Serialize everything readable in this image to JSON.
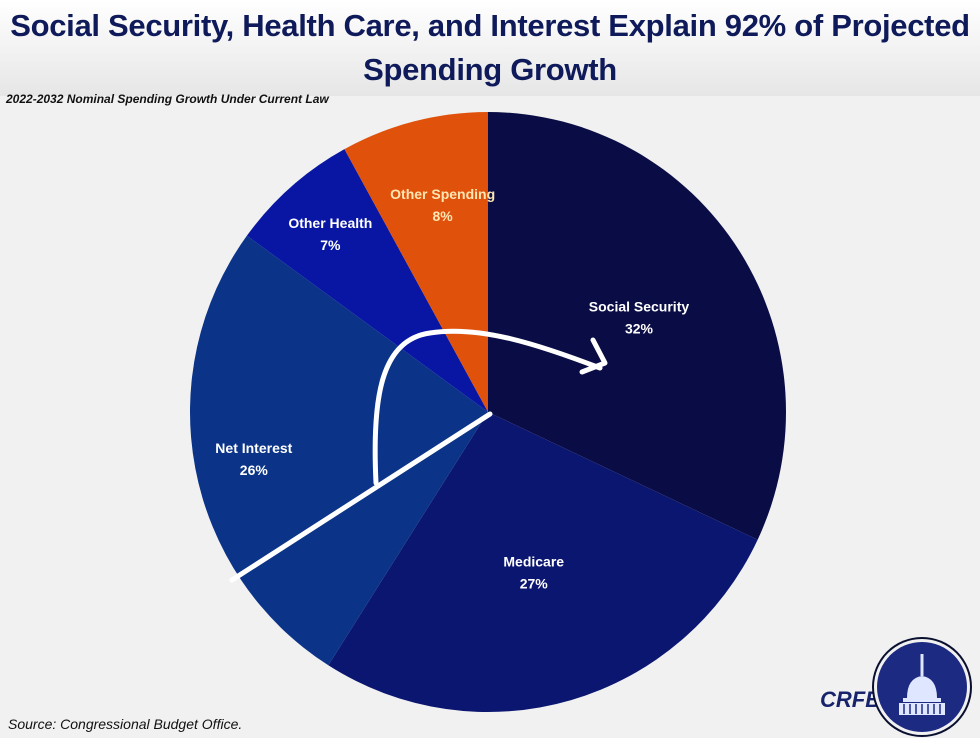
{
  "chart_data": {
    "type": "pie",
    "title": "Social Security, Health Care, and Interest Explain 92% of Projected Spending Growth",
    "subtitle": "2022-2032 Nominal Spending Growth Under Current Law",
    "start_angle": "12 o'clock",
    "direction": "clockwise",
    "slices": [
      {
        "label": "Social Security",
        "value": 32,
        "value_label": "32%",
        "color": "#0a0d45"
      },
      {
        "label": "Medicare",
        "value": 27,
        "value_label": "27%",
        "color": "#0b1670"
      },
      {
        "label": "Net Interest",
        "value": 26,
        "value_label": "26%",
        "color": "#0b3488"
      },
      {
        "label": "Other Health",
        "value": 7,
        "value_label": "7%",
        "color": "#0816a3"
      },
      {
        "label": "Other Spending",
        "value": 8,
        "value_label": "8%",
        "color": "#e0520b"
      }
    ],
    "annotations": [
      "white hand-drawn arrow from Net Interest to Social Security",
      "white line through Net Interest slice"
    ]
  },
  "footer": {
    "source": "Source: Congressional Budget Office.",
    "brand": "CRFB.org"
  },
  "colors": {
    "title": "#0f1a5a",
    "background": "#f1f1f1",
    "seal": "#1c2a82"
  }
}
